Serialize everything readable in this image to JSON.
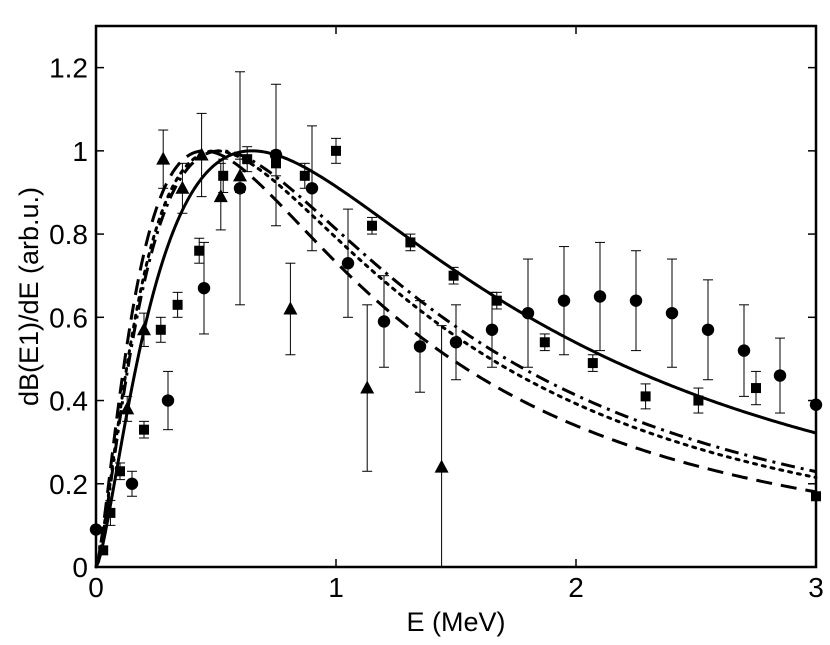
{
  "chart_data": {
    "type": "scatter",
    "title": "",
    "xlabel": "E (MeV)",
    "ylabel": "dB(E1)/dE (arb.u.)",
    "xlim": [
      0,
      3
    ],
    "ylim": [
      0,
      1.3
    ],
    "xticks": [
      0,
      1,
      2,
      3
    ],
    "xtick_labels": [
      "0",
      "1",
      "2",
      "3"
    ],
    "yticks": [
      0,
      0.2,
      0.4,
      0.6,
      0.8,
      1.0,
      1.2
    ],
    "ytick_labels": [
      "0",
      "0.2",
      "0.4",
      "0.6",
      "0.8",
      "1",
      "1.2"
    ],
    "grid": false,
    "curves": [
      {
        "name": "solid",
        "style": "solid",
        "peak": 0.65
      },
      {
        "name": "dash-dot",
        "style": "dashdot",
        "peak": 0.52
      },
      {
        "name": "dotted",
        "style": "dotted",
        "peak": 0.5
      },
      {
        "name": "dashed",
        "style": "dashed",
        "peak": 0.45
      }
    ],
    "series": [
      {
        "name": "circles",
        "marker": "circle",
        "points": [
          {
            "x": 0.0,
            "y": 0.09
          },
          {
            "x": 0.15,
            "y": 0.2,
            "err": 0.03
          },
          {
            "x": 0.3,
            "y": 0.4,
            "err": 0.07
          },
          {
            "x": 0.45,
            "y": 0.67,
            "err": 0.11
          },
          {
            "x": 0.6,
            "y": 0.91,
            "err": 0.28
          },
          {
            "x": 0.75,
            "y": 0.99,
            "err": 0.17
          },
          {
            "x": 0.9,
            "y": 0.91,
            "err": 0.15
          },
          {
            "x": 1.05,
            "y": 0.73,
            "err": 0.13
          },
          {
            "x": 1.2,
            "y": 0.59,
            "err": 0.11
          },
          {
            "x": 1.35,
            "y": 0.53,
            "err": 0.11
          },
          {
            "x": 1.5,
            "y": 0.54,
            "err": 0.09
          },
          {
            "x": 1.65,
            "y": 0.57,
            "err": 0.09
          },
          {
            "x": 1.8,
            "y": 0.61,
            "err": 0.13
          },
          {
            "x": 1.95,
            "y": 0.64,
            "err": 0.13
          },
          {
            "x": 2.1,
            "y": 0.65,
            "err": 0.13
          },
          {
            "x": 2.25,
            "y": 0.64,
            "err": 0.12
          },
          {
            "x": 2.4,
            "y": 0.61,
            "err": 0.13
          },
          {
            "x": 2.55,
            "y": 0.57,
            "err": 0.12
          },
          {
            "x": 2.7,
            "y": 0.52,
            "err": 0.11
          },
          {
            "x": 2.85,
            "y": 0.46,
            "err": 0.09
          },
          {
            "x": 3.0,
            "y": 0.39
          }
        ]
      },
      {
        "name": "squares",
        "marker": "square",
        "points": [
          {
            "x": 0.03,
            "y": 0.04
          },
          {
            "x": 0.06,
            "y": 0.13,
            "err": 0.03
          },
          {
            "x": 0.1,
            "y": 0.23,
            "err": 0.02
          },
          {
            "x": 0.2,
            "y": 0.33,
            "err": 0.02
          },
          {
            "x": 0.27,
            "y": 0.57,
            "err": 0.03
          },
          {
            "x": 0.34,
            "y": 0.63,
            "err": 0.03
          },
          {
            "x": 0.43,
            "y": 0.76,
            "err": 0.03
          },
          {
            "x": 0.53,
            "y": 0.94,
            "err": 0.04
          },
          {
            "x": 0.63,
            "y": 0.98,
            "err": 0.03
          },
          {
            "x": 0.75,
            "y": 0.97,
            "err": 0.03
          },
          {
            "x": 0.87,
            "y": 0.94,
            "err": 0.03
          },
          {
            "x": 1.0,
            "y": 1.0,
            "err": 0.03
          },
          {
            "x": 1.15,
            "y": 0.82,
            "err": 0.02
          },
          {
            "x": 1.31,
            "y": 0.78,
            "err": 0.02
          },
          {
            "x": 1.49,
            "y": 0.7,
            "err": 0.02
          },
          {
            "x": 1.67,
            "y": 0.64,
            "err": 0.02
          },
          {
            "x": 1.87,
            "y": 0.54,
            "err": 0.02
          },
          {
            "x": 2.07,
            "y": 0.49,
            "err": 0.02
          },
          {
            "x": 2.29,
            "y": 0.41,
            "err": 0.03
          },
          {
            "x": 2.51,
            "y": 0.4,
            "err": 0.03
          },
          {
            "x": 2.75,
            "y": 0.43,
            "err": 0.04
          },
          {
            "x": 3.0,
            "y": 0.17
          }
        ]
      },
      {
        "name": "triangles",
        "marker": "triangle",
        "points": [
          {
            "x": 0.13,
            "y": 0.38,
            "err": 0.03
          },
          {
            "x": 0.2,
            "y": 0.57,
            "err": 0.04
          },
          {
            "x": 0.28,
            "y": 0.98,
            "err": 0.07
          },
          {
            "x": 0.36,
            "y": 0.91,
            "err": 0.06
          },
          {
            "x": 0.44,
            "y": 0.99,
            "err": 0.1
          },
          {
            "x": 0.52,
            "y": 0.89,
            "err": 0.08
          },
          {
            "x": 0.6,
            "y": 0.94,
            "err": 0.04
          },
          {
            "x": 0.81,
            "y": 0.62,
            "err": 0.11
          },
          {
            "x": 1.13,
            "y": 0.43,
            "err": 0.2
          },
          {
            "x": 1.44,
            "y": 0.24,
            "err": 0.34
          }
        ]
      }
    ]
  }
}
